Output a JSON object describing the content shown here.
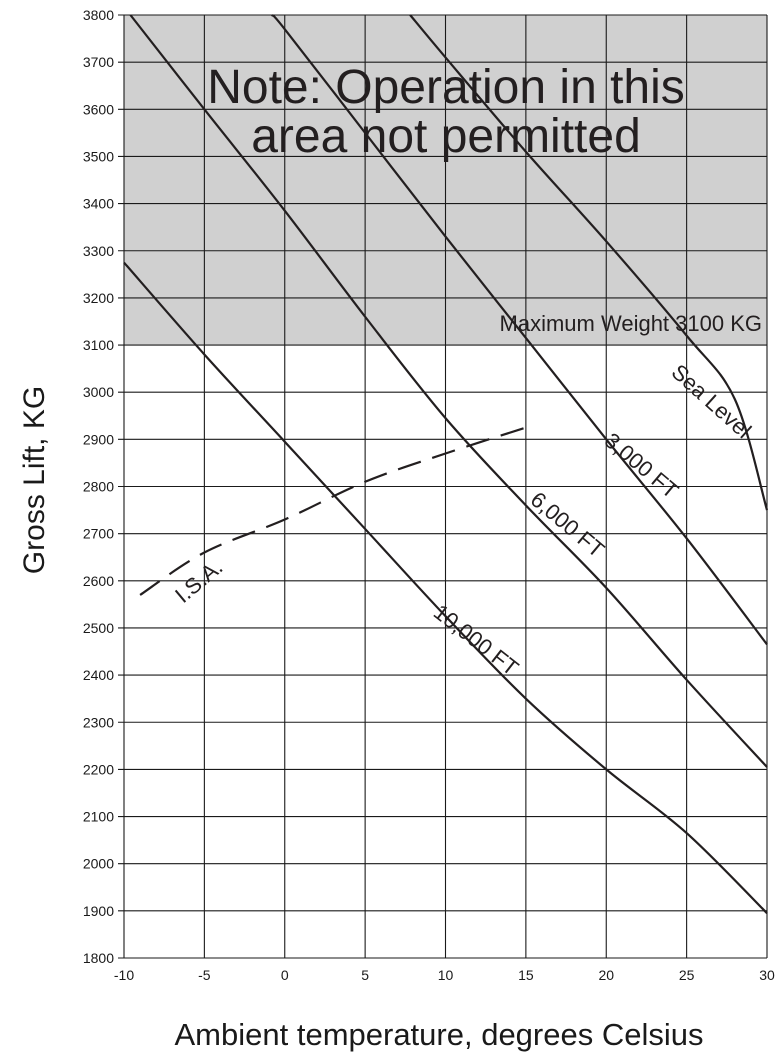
{
  "chart_data": {
    "type": "line",
    "xlabel": "Ambient temperature, degrees Celsius",
    "ylabel": "Gross Lift, KG",
    "xlim": [
      -10,
      30
    ],
    "ylim": [
      1800,
      3800
    ],
    "x_ticks": [
      -10,
      -5,
      0,
      5,
      10,
      15,
      20,
      25,
      30
    ],
    "y_ticks": [
      1800,
      1900,
      2000,
      2100,
      2200,
      2300,
      2400,
      2500,
      2600,
      2700,
      2800,
      2900,
      3000,
      3100,
      3200,
      3300,
      3400,
      3500,
      3600,
      3700,
      3800
    ],
    "grid": true,
    "restricted_area": {
      "y_from": 3100,
      "y_to": 3800,
      "color": "#d0d0d0",
      "note_lines": [
        "Note: Operation in this",
        "area not permitted"
      ],
      "limit_label": "Maximum Weight 3100 KG"
    },
    "series": [
      {
        "name": "Sea Level",
        "style": "solid",
        "points": [
          [
            7.8,
            3800
          ],
          [
            10,
            3710
          ],
          [
            15,
            3510
          ],
          [
            20,
            3320
          ],
          [
            25,
            3120
          ],
          [
            28,
            2985
          ],
          [
            30,
            2750
          ]
        ]
      },
      {
        "name": "3,000 FT",
        "style": "solid",
        "points": [
          [
            -0.8,
            3800
          ],
          [
            0,
            3770
          ],
          [
            5,
            3550
          ],
          [
            10,
            3330
          ],
          [
            15,
            3115
          ],
          [
            20,
            2900
          ],
          [
            25,
            2690
          ],
          [
            30,
            2465
          ]
        ]
      },
      {
        "name": "6,000 FT",
        "style": "solid",
        "points": [
          [
            -9.6,
            3800
          ],
          [
            -5,
            3600
          ],
          [
            0,
            3385
          ],
          [
            5,
            3160
          ],
          [
            10,
            2945
          ],
          [
            15,
            2760
          ],
          [
            20,
            2585
          ],
          [
            25,
            2390
          ],
          [
            30,
            2205
          ]
        ]
      },
      {
        "name": "10,000 FT",
        "style": "solid",
        "points": [
          [
            -10,
            3275
          ],
          [
            -5,
            3080
          ],
          [
            0,
            2895
          ],
          [
            5,
            2710
          ],
          [
            10,
            2525
          ],
          [
            15,
            2350
          ],
          [
            20,
            2200
          ],
          [
            25,
            2065
          ],
          [
            30,
            1895
          ]
        ]
      },
      {
        "name": "I.S.A.",
        "style": "dashed",
        "points": [
          [
            -9,
            2570
          ],
          [
            -5,
            2660
          ],
          [
            0,
            2730
          ],
          [
            5,
            2810
          ],
          [
            10,
            2870
          ],
          [
            15,
            2925
          ]
        ]
      }
    ],
    "curve_labels": [
      "Sea Level",
      "3,000 FT",
      "6,000 FT",
      "10,000 FT",
      "I.S.A."
    ]
  }
}
